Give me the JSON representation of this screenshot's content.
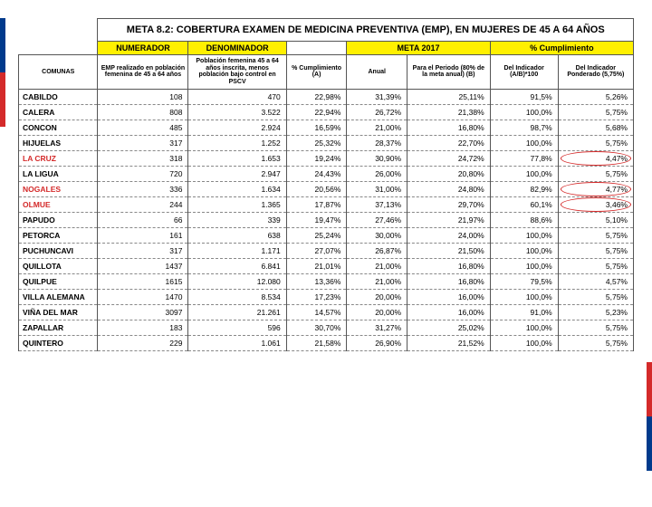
{
  "title": "META 8.2: COBERTURA EXAMEN DE MEDICINA PREVENTIVA (EMP), EN MUJERES DE 45 A 64 AÑOS",
  "headers": {
    "comunas": "COMUNAS",
    "numerador": "NUMERADOR",
    "denominador": "DENOMINADOR",
    "meta2017": "META 2017",
    "cumplimiento": "% Cumplimiento",
    "num_sub": "EMP realizado en población femenina de 45 a 64 años",
    "den_sub": "Población femenina 45 a 64 años inscrita, menos población bajo control en PSCV",
    "pct_cumpl": "% Cumplimiento (A)",
    "anual": "Anual",
    "periodo": "Para el Periodo (80% de la meta anual) (B)",
    "indicador": "Del Indicador (A/B)*100",
    "ponderado": "Del Indicador Ponderado (5,75%)"
  },
  "colors": {
    "header_yellow": "#fff000",
    "border": "#555555",
    "red": "#d42a2a",
    "blue": "#003a8c",
    "background": "#ffffff",
    "dash_border": "#888888"
  },
  "highlight_rows": [
    "LA CRUZ",
    "NOGALES",
    "OLMUE"
  ],
  "rows": [
    {
      "comuna": "CABILDO",
      "num": "108",
      "den": "470",
      "cumpl": "22,98%",
      "anual": "31,39%",
      "periodo": "25,11%",
      "ind": "91,5%",
      "pond": "5,26%"
    },
    {
      "comuna": "CALERA",
      "num": "808",
      "den": "3.522",
      "cumpl": "22,94%",
      "anual": "26,72%",
      "periodo": "21,38%",
      "ind": "100,0%",
      "pond": "5,75%"
    },
    {
      "comuna": "CONCON",
      "num": "485",
      "den": "2.924",
      "cumpl": "16,59%",
      "anual": "21,00%",
      "periodo": "16,80%",
      "ind": "98,7%",
      "pond": "5,68%"
    },
    {
      "comuna": "HIJUELAS",
      "num": "317",
      "den": "1.252",
      "cumpl": "25,32%",
      "anual": "28,37%",
      "periodo": "22,70%",
      "ind": "100,0%",
      "pond": "5,75%"
    },
    {
      "comuna": "LA CRUZ",
      "num": "318",
      "den": "1.653",
      "cumpl": "19,24%",
      "anual": "30,90%",
      "periodo": "24,72%",
      "ind": "77,8%",
      "pond": "4,47%",
      "circled": true
    },
    {
      "comuna": "LA LIGUA",
      "num": "720",
      "den": "2.947",
      "cumpl": "24,43%",
      "anual": "26,00%",
      "periodo": "20,80%",
      "ind": "100,0%",
      "pond": "5,75%"
    },
    {
      "comuna": "NOGALES",
      "num": "336",
      "den": "1.634",
      "cumpl": "20,56%",
      "anual": "31,00%",
      "periodo": "24,80%",
      "ind": "82,9%",
      "pond": "4,77%",
      "circled": true
    },
    {
      "comuna": "OLMUE",
      "num": "244",
      "den": "1.365",
      "cumpl": "17,87%",
      "anual": "37,13%",
      "periodo": "29,70%",
      "ind": "60,1%",
      "pond": "3,46%",
      "circled": true
    },
    {
      "comuna": "PAPUDO",
      "num": "66",
      "den": "339",
      "cumpl": "19,47%",
      "anual": "27,46%",
      "periodo": "21,97%",
      "ind": "88,6%",
      "pond": "5,10%"
    },
    {
      "comuna": "PETORCA",
      "num": "161",
      "den": "638",
      "cumpl": "25,24%",
      "anual": "30,00%",
      "periodo": "24,00%",
      "ind": "100,0%",
      "pond": "5,75%"
    },
    {
      "comuna": "PUCHUNCAVI",
      "num": "317",
      "den": "1.171",
      "cumpl": "27,07%",
      "anual": "26,87%",
      "periodo": "21,50%",
      "ind": "100,0%",
      "pond": "5,75%"
    },
    {
      "comuna": "QUILLOTA",
      "num": "1437",
      "den": "6.841",
      "cumpl": "21,01%",
      "anual": "21,00%",
      "periodo": "16,80%",
      "ind": "100,0%",
      "pond": "5,75%"
    },
    {
      "comuna": "QUILPUE",
      "num": "1615",
      "den": "12.080",
      "cumpl": "13,36%",
      "anual": "21,00%",
      "periodo": "16,80%",
      "ind": "79,5%",
      "pond": "4,57%"
    },
    {
      "comuna": "VILLA ALEMANA",
      "num": "1470",
      "den": "8.534",
      "cumpl": "17,23%",
      "anual": "20,00%",
      "periodo": "16,00%",
      "ind": "100,0%",
      "pond": "5,75%"
    },
    {
      "comuna": "VIÑA DEL MAR",
      "num": "3097",
      "den": "21.261",
      "cumpl": "14,57%",
      "anual": "20,00%",
      "periodo": "16,00%",
      "ind": "91,0%",
      "pond": "5,23%"
    },
    {
      "comuna": "ZAPALLAR",
      "num": "183",
      "den": "596",
      "cumpl": "30,70%",
      "anual": "31,27%",
      "periodo": "25,02%",
      "ind": "100,0%",
      "pond": "5,75%"
    },
    {
      "comuna": "QUINTERO",
      "num": "229",
      "den": "1.061",
      "cumpl": "21,58%",
      "anual": "26,90%",
      "periodo": "21,52%",
      "ind": "100,0%",
      "pond": "5,75%"
    }
  ]
}
